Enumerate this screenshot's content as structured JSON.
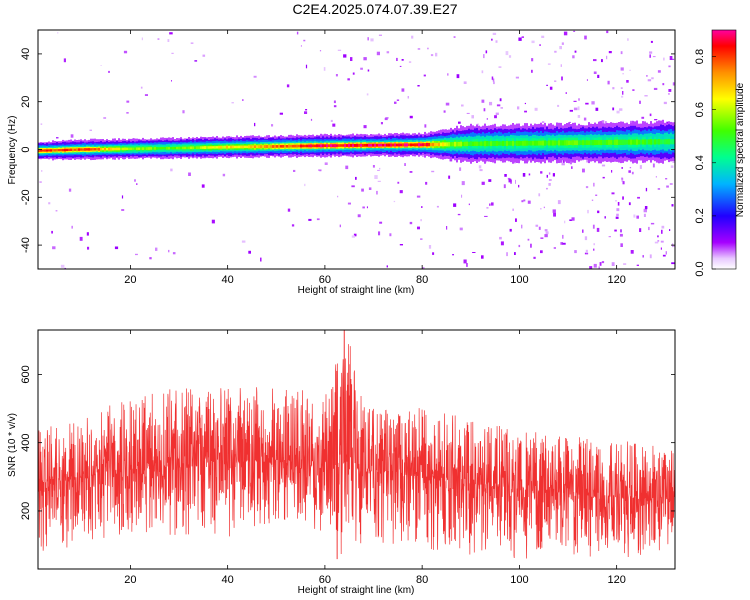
{
  "figure": {
    "title": "C2E4.2025.074.07.39.E27"
  },
  "chart_data": [
    {
      "type": "heatmap",
      "xlabel": "Height of straight line (km)",
      "ylabel": "Frequency (Hz)",
      "xlim": [
        1,
        132
      ],
      "ylim": [
        -50,
        50
      ],
      "xticks": [
        20,
        40,
        60,
        80,
        100,
        120
      ],
      "yticks": [
        -40,
        -20,
        0,
        20,
        40
      ],
      "grid": false,
      "colorbar": {
        "label": "Normalized spectral amplitude",
        "range": [
          0,
          0.9
        ],
        "ticks": [
          0.0,
          0.2,
          0.4,
          0.6,
          0.8
        ],
        "tick_labels": [
          "0.0",
          "0.2",
          "0.4",
          "0.6",
          "0.8"
        ],
        "colormap": "rainbow (purple→blue→cyan→green→yellow→orange→red→magenta)",
        "colors": [
          "#ffffff",
          "#a600ff",
          "#2000ff",
          "#00b4ff",
          "#00ff90",
          "#40ff00",
          "#ffff00",
          "#ff9000",
          "#ff0000",
          "#ff00a0"
        ]
      },
      "center_frequency_track": {
        "description": "strong band near 0 Hz, slightly rising with height",
        "x": [
          1,
          10,
          20,
          30,
          40,
          50,
          60,
          70,
          80,
          86,
          90,
          100,
          110,
          120,
          132
        ],
        "y": [
          -0.5,
          0,
          0.3,
          0.6,
          1.0,
          1.3,
          1.6,
          1.8,
          2.0,
          2.2,
          2.4,
          2.6,
          2.8,
          3.0,
          3.3
        ],
        "half_width_hz": [
          2.2,
          2.4,
          2.4,
          2.5,
          2.6,
          2.6,
          2.7,
          2.7,
          2.8,
          4.0,
          4.5,
          4.6,
          4.6,
          4.8,
          5.0
        ],
        "peak_amplitude": [
          0.85,
          0.85,
          0.6,
          0.55,
          0.7,
          0.8,
          0.9,
          0.9,
          0.9,
          0.6,
          0.55,
          0.55,
          0.55,
          0.55,
          0.5
        ]
      },
      "noise_speckle_density": {
        "description": "sparse low-amplitude speckle, denser at large heights",
        "x": [
          1,
          40,
          86,
          132
        ],
        "relative_density": [
          0.15,
          0.1,
          0.45,
          1.0
        ]
      }
    },
    {
      "type": "line",
      "xlabel": "Height of straight line (km)",
      "ylabel": "SNR (10 * v/v)",
      "xlim": [
        1,
        132
      ],
      "ylim": [
        30,
        730
      ],
      "xticks": [
        20,
        40,
        60,
        80,
        100,
        120
      ],
      "yticks": [
        200,
        400,
        600
      ],
      "grid": false,
      "series": [
        {
          "color": "#f03030",
          "description": "dense noisy trace; envelope given as mean/min/max per height",
          "x": [
            1,
            10,
            20,
            30,
            40,
            50,
            60,
            64,
            70,
            80,
            90,
            100,
            110,
            120,
            132
          ],
          "mean": [
            290,
            300,
            320,
            340,
            345,
            350,
            345,
            340,
            320,
            305,
            280,
            265,
            250,
            240,
            235
          ],
          "max": [
            440,
            470,
            540,
            560,
            560,
            580,
            550,
            730,
            520,
            500,
            470,
            440,
            420,
            410,
            380
          ],
          "min": [
            60,
            110,
            130,
            130,
            120,
            170,
            140,
            60,
            110,
            90,
            70,
            60,
            60,
            60,
            70
          ],
          "spikes": [
            {
              "x": 64.0,
              "y": 730
            },
            {
              "x": 65.5,
              "y": 570
            },
            {
              "x": 62.5,
              "y": 60
            }
          ]
        }
      ]
    }
  ]
}
